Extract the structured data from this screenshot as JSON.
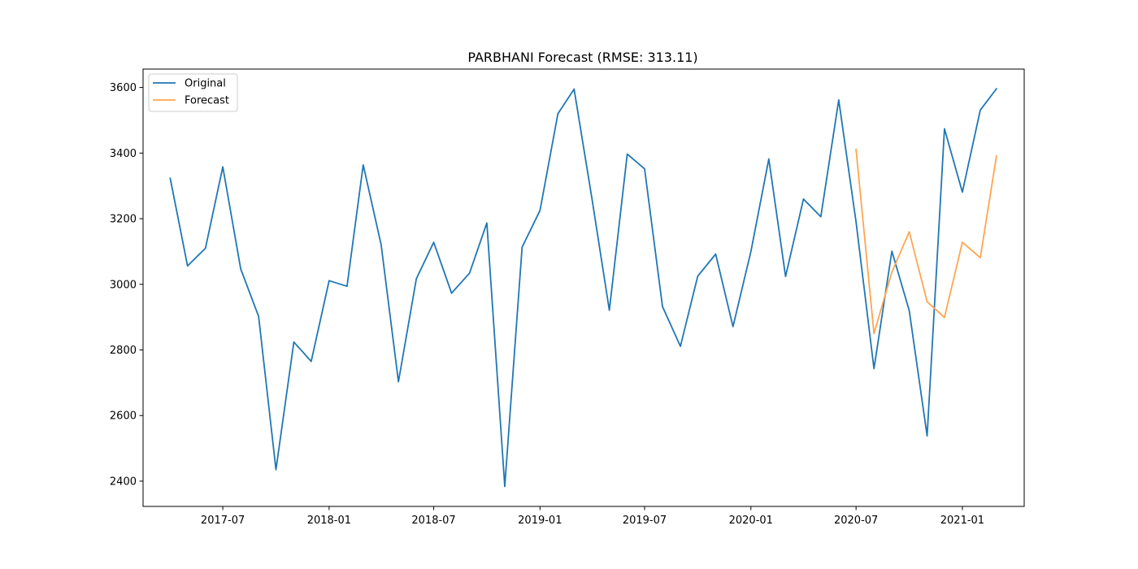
{
  "chart_data": {
    "type": "line",
    "title": "PARBHANI Forecast (RMSE: 313.11)",
    "xlabel": "",
    "ylabel": "",
    "x_tick_labels": [
      "2017-07",
      "2018-01",
      "2018-07",
      "2019-01",
      "2019-07",
      "2020-01",
      "2020-07",
      "2021-01"
    ],
    "y_ticks": [
      2400,
      2600,
      2800,
      3000,
      3200,
      3400,
      3600
    ],
    "xlim": [
      "2017-02-13",
      "2021-04-18"
    ],
    "ylim": [
      2323,
      3656
    ],
    "grid": false,
    "legend_position": "top-left",
    "series": [
      {
        "name": "Original",
        "color": "#1f77b4",
        "x": [
          "2017-04",
          "2017-05",
          "2017-06",
          "2017-07",
          "2017-08",
          "2017-09",
          "2017-10",
          "2017-11",
          "2017-12",
          "2018-01",
          "2018-02",
          "2018-03",
          "2018-04",
          "2018-05",
          "2018-06",
          "2018-07",
          "2018-08",
          "2018-09",
          "2018-10",
          "2018-11",
          "2018-12",
          "2019-01",
          "2019-02",
          "2019-03",
          "2019-04",
          "2019-05",
          "2019-06",
          "2019-07",
          "2019-08",
          "2019-09",
          "2019-10",
          "2019-11",
          "2019-12",
          "2020-01",
          "2020-02",
          "2020-03",
          "2020-04",
          "2020-05",
          "2020-06",
          "2020-07",
          "2020-08",
          "2020-09",
          "2020-10",
          "2020-11",
          "2020-12",
          "2021-01",
          "2021-02",
          "2021-03"
        ],
        "y": [
          3323,
          3056,
          3110,
          3358,
          3047,
          2902,
          2435,
          2824,
          2765,
          3011,
          2994,
          3364,
          3121,
          2703,
          3017,
          3128,
          2973,
          3034,
          3187,
          2384,
          3113,
          3225,
          3520,
          3595,
          3260,
          2921,
          3397,
          3352,
          2932,
          2811,
          3025,
          3092,
          2871,
          3100,
          3382,
          3024,
          3260,
          3206,
          3562,
          3190,
          2743,
          3101,
          2920,
          2538,
          3474,
          3281,
          3531,
          3596
        ]
      },
      {
        "name": "Forecast",
        "color": "#ffa54f",
        "x": [
          "2020-07",
          "2020-08",
          "2020-09",
          "2020-10",
          "2020-11",
          "2020-12",
          "2021-01",
          "2021-02",
          "2021-03"
        ],
        "y": [
          3411,
          2850,
          3037,
          3160,
          2947,
          2899,
          3128,
          3081,
          3391
        ]
      }
    ]
  }
}
